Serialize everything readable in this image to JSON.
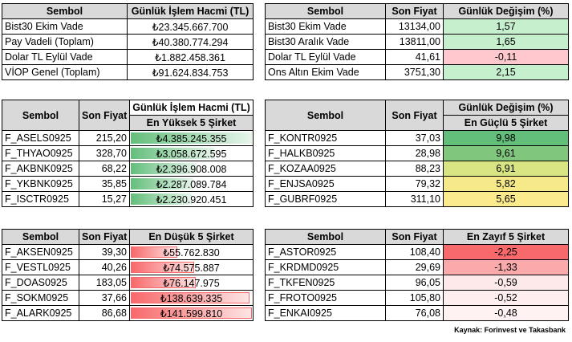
{
  "table1": {
    "headers": [
      "Sembol",
      "Günlük İşlem Hacmi (TL)"
    ],
    "rows": [
      [
        "Bist30 Ekim Vade",
        "₺23.345.667.700"
      ],
      [
        "Pay Vadeli (Toplam)",
        "₺40.380.774.294"
      ],
      [
        "Dolar TL Eylül Vade",
        "₺1.882.458.361"
      ],
      [
        "VİOP Genel (Toplam)",
        "₺91.624.834.753"
      ]
    ]
  },
  "table2": {
    "headers": [
      "Sembol",
      "Son Fiyat",
      "Günlük Değişim (%)"
    ],
    "rows": [
      [
        "Bist30 Ekim Vade",
        "13134,00",
        "1,57"
      ],
      [
        "Bist30 Aralık Vade",
        "13811,00",
        "1,65"
      ],
      [
        "Dolar TL Eylül Vade",
        "41,61",
        "-0,11"
      ],
      [
        "Ons Altın Ekim Vade",
        "3751,30",
        "2,15"
      ]
    ],
    "change_colors": [
      "#c6efce",
      "#c6efce",
      "#ffc7ce",
      "#c6efce"
    ]
  },
  "table3": {
    "headers": [
      "Sembol",
      "Son Fiyat",
      "Günlük İşlem Hacmi (TL)"
    ],
    "subheader": "En Yüksek 5 Şirket",
    "rows": [
      [
        "F_ASELS0925",
        "215,20",
        "₺4.385.245.355"
      ],
      [
        "F_THYAO0925",
        "328,70",
        "₺3.058.672.595"
      ],
      [
        "F_AKBNK0925",
        "68,22",
        "₺2.396.908.008"
      ],
      [
        "F_YKBNK0925",
        "35,85",
        "₺2.287.089.784"
      ],
      [
        "F_ISCTR0925",
        "15,27",
        "₺2.230.920.451"
      ]
    ],
    "bar_fraction": [
      1.0,
      0.7,
      0.55,
      0.52,
      0.51
    ]
  },
  "table4": {
    "headers": [
      "Sembol",
      "Son Fiyat",
      "Günlük Değişim (%)"
    ],
    "subheader": "En Güçlü 5 Şirket",
    "rows": [
      [
        "F_KONTR0925",
        "37,03",
        "9,98"
      ],
      [
        "F_HALKB0925",
        "28,98",
        "9,61"
      ],
      [
        "F_KOZAA0925",
        "88,23",
        "6,91"
      ],
      [
        "F_ENJSA0925",
        "79,32",
        "5,82"
      ],
      [
        "F_GUBRF0925",
        "311,10",
        "5,65"
      ]
    ],
    "change_colors": [
      "#63be7b",
      "#80c77d",
      "#d9e482",
      "#f6e98a",
      "#fbeb8c"
    ]
  },
  "table5": {
    "headers": [
      "Sembol",
      "Son Fiyat",
      "En Düşük 5 Şirket"
    ],
    "rows": [
      [
        "F_AKSEN0925",
        "39,30",
        "₺55.762.830"
      ],
      [
        "F_VESTL0925",
        "40,26",
        "₺74.575.887"
      ],
      [
        "F_DOAS0925",
        "183,05",
        "₺76.147.975"
      ],
      [
        "F_SOKM0925",
        "37,66",
        "₺138.639.335"
      ],
      [
        "F_ALARK0925",
        "86,68",
        "₺141.599.810"
      ]
    ],
    "bar_fraction": [
      0.39,
      0.53,
      0.54,
      0.98,
      1.0
    ]
  },
  "table6": {
    "headers": [
      "Sembol",
      "Son Fiyat",
      "En Zayıf 5 Şirket"
    ],
    "rows": [
      [
        "F_ASTOR0925",
        "108,40",
        "-2,25"
      ],
      [
        "F_KRDMD0925",
        "29,69",
        "-1,33"
      ],
      [
        "F_TKFEN0925",
        "96,05",
        "-0,59"
      ],
      [
        "F_FROTO0925",
        "105,80",
        "-0,52"
      ],
      [
        "F_ENKAI0925",
        "76,08",
        "-0,48"
      ]
    ],
    "change_colors": [
      "#f8696b",
      "#fbaaac",
      "#fde9ea",
      "#feeeee",
      "#fef2f2"
    ]
  },
  "source": "Kaynak: Forinvest ve Takasbank"
}
